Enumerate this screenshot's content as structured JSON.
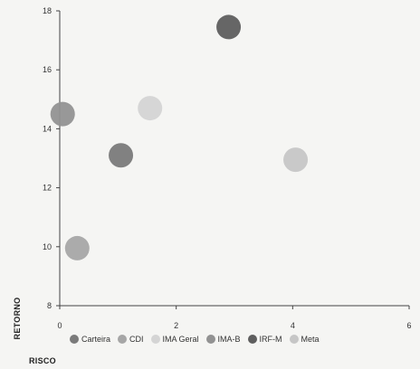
{
  "chart_data": {
    "type": "scatter",
    "xlabel": "RISCO",
    "ylabel": "RETORNO",
    "xlim": [
      0,
      6
    ],
    "ylim": [
      8,
      18
    ],
    "x_ticks": [
      0,
      2,
      4,
      6
    ],
    "y_ticks": [
      8,
      10,
      12,
      14,
      16,
      18
    ],
    "legend_position": "bottom",
    "grid": false,
    "series": [
      {
        "name": "Carteira",
        "color": "#7a7a7a",
        "x": 1.05,
        "y": 13.1
      },
      {
        "name": "CDI",
        "color": "#a6a6a6",
        "x": 0.3,
        "y": 9.95
      },
      {
        "name": "IMA Geral",
        "color": "#d4d4d4",
        "x": 1.55,
        "y": 14.7
      },
      {
        "name": "IMA-B",
        "color": "#929292",
        "x": 0.05,
        "y": 14.5
      },
      {
        "name": "IRF-M",
        "color": "#5e5e5e",
        "x": 2.9,
        "y": 17.45
      },
      {
        "name": "Meta",
        "color": "#c6c6c6",
        "x": 4.05,
        "y": 12.95
      }
    ]
  }
}
